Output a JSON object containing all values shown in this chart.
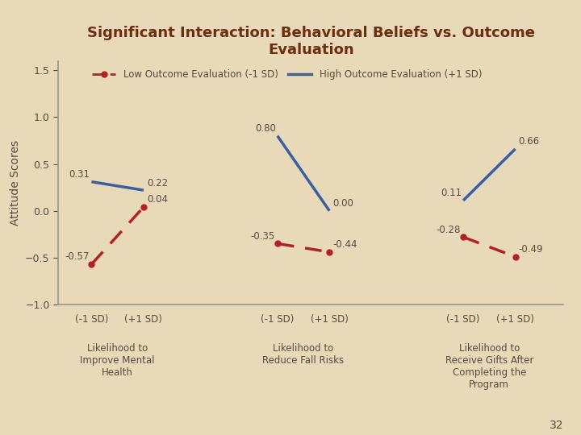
{
  "title": "Significant Interaction: Behavioral Beliefs vs. Outcome\nEvaluation",
  "ylabel": "Attitude Scores",
  "background_color": "#e8d9b8",
  "title_color": "#6b2e10",
  "text_color": "#5a4a3a",
  "axis_color": "#999888",
  "ylim": [
    -1.0,
    1.6
  ],
  "yticks": [
    -1.0,
    -0.5,
    0.0,
    0.5,
    1.0,
    1.5
  ],
  "groups": [
    {
      "sd_labels": [
        "(-1 SD)",
        "(+1 SD)"
      ],
      "xlabel_bottom": "Likelihood to\nImprove Mental\nHealth",
      "low_vals": [
        -0.57,
        0.04
      ],
      "high_vals": [
        0.31,
        0.22
      ]
    },
    {
      "sd_labels": [
        "(-1 SD)",
        "(+1 SD)"
      ],
      "xlabel_bottom": "Likelihood to\nReduce Fall Risks",
      "low_vals": [
        -0.35,
        -0.44
      ],
      "high_vals": [
        0.8,
        0.0
      ]
    },
    {
      "sd_labels": [
        "(-1 SD)",
        "(+1 SD)"
      ],
      "xlabel_bottom": "Likelihood to\nReceive Gifts After\nCompleting the\nProgram",
      "low_vals": [
        -0.28,
        -0.49
      ],
      "high_vals": [
        0.11,
        0.66
      ]
    }
  ],
  "low_color": "#b22222",
  "high_color": "#3a5fa0",
  "legend_low": "Low Outcome Evaluation (-1 SD)",
  "legend_high": "High Outcome Evaluation (+1 SD)",
  "page_number": "32",
  "group_centers": [
    1.0,
    3.5,
    6.0
  ],
  "spread": 0.35,
  "xlim": [
    0.2,
    7.0
  ]
}
